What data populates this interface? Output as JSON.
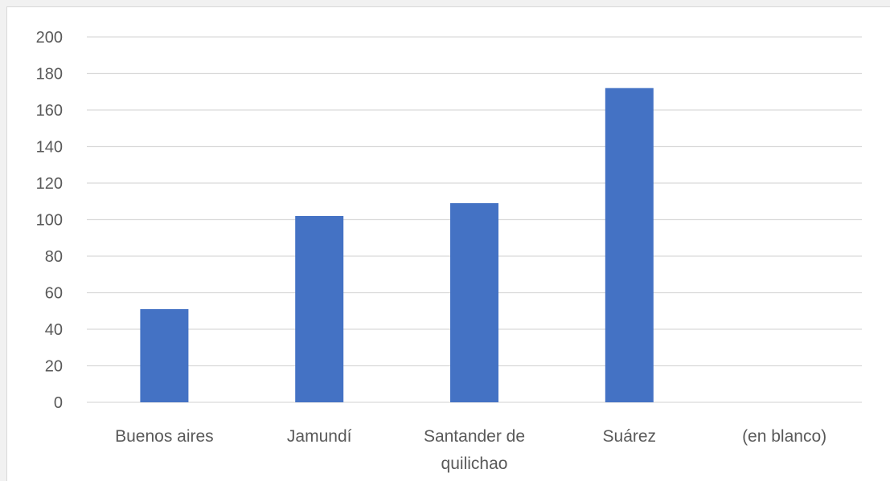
{
  "chart_data": {
    "type": "bar",
    "categories": [
      "Buenos aires",
      "Jamundí",
      "Santander de quilichao",
      "Suárez",
      "(en blanco)"
    ],
    "category_lines": [
      [
        "Buenos aires"
      ],
      [
        "Jamundí"
      ],
      [
        "Santander de",
        "quilichao"
      ],
      [
        "Suárez"
      ],
      [
        "(en blanco)"
      ]
    ],
    "values": [
      51,
      102,
      109,
      172,
      null
    ],
    "ylim": [
      0,
      200
    ],
    "y_ticks": [
      0,
      20,
      40,
      60,
      80,
      100,
      120,
      140,
      160,
      180,
      200
    ],
    "grid": true,
    "legend": "none",
    "bar_color": "#4472c4",
    "grid_color": "#d9d9d9",
    "title": "",
    "xlabel": "",
    "ylabel": ""
  }
}
